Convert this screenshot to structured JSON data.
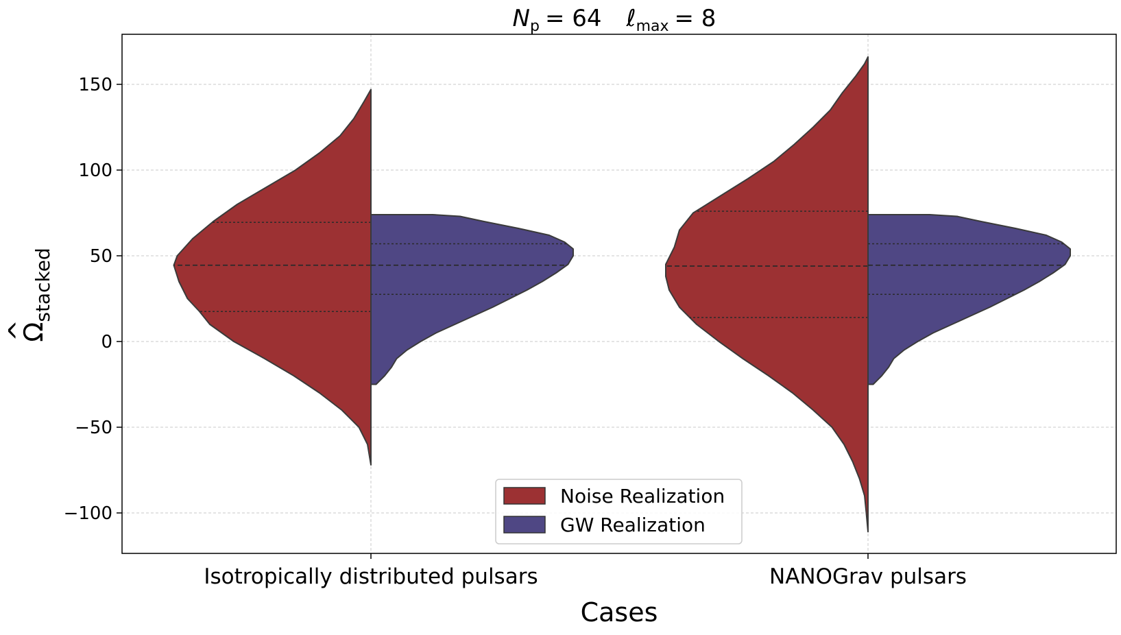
{
  "chart_data": {
    "type": "split-violin",
    "title": {
      "n_symbol": "N",
      "n_sub": "p",
      "n_value": "= 64",
      "l_symbol": "ℓ",
      "l_sub": "max",
      "l_value": "= 8"
    },
    "xlabel": "Cases",
    "ylabel": {
      "base": "Ω",
      "hat": "^",
      "sub": "stacked"
    },
    "ylim": [
      -124,
      180
    ],
    "yticks": [
      150,
      100,
      50,
      0,
      -50,
      -100
    ],
    "ytick_labels": [
      "150",
      "100",
      "50",
      "0",
      "−50",
      "−100"
    ],
    "grid": true,
    "categories": [
      "Isotropically distributed pulsars",
      "NANOGrav pulsars"
    ],
    "legend": {
      "position": "bottom-center",
      "entries": [
        {
          "label": "Noise Realization",
          "color": "#9C3133"
        },
        {
          "label": "GW Realization",
          "color": "#4F4784"
        }
      ]
    },
    "series": [
      {
        "name": "Noise Realization",
        "side": "left",
        "color": "#9C3133",
        "violins": [
          {
            "category": "Isotropically distributed pulsars",
            "y_min": -72,
            "y_max": 147,
            "quartiles": [
              17.5,
              44.5,
              69.5
            ],
            "density": [
              [
                -72,
                0
              ],
              [
                -60,
                0.02
              ],
              [
                -50,
                0.07
              ],
              [
                -40,
                0.17
              ],
              [
                -30,
                0.3
              ],
              [
                -20,
                0.45
              ],
              [
                -10,
                0.62
              ],
              [
                0,
                0.8
              ],
              [
                10,
                0.94
              ],
              [
                17.5,
                1.0
              ],
              [
                25,
                1.07
              ],
              [
                35,
                1.12
              ],
              [
                44.5,
                1.15
              ],
              [
                50,
                1.13
              ],
              [
                60,
                1.04
              ],
              [
                70,
                0.92
              ],
              [
                80,
                0.78
              ],
              [
                90,
                0.61
              ],
              [
                100,
                0.44
              ],
              [
                110,
                0.3
              ],
              [
                120,
                0.18
              ],
              [
                130,
                0.1
              ],
              [
                140,
                0.04
              ],
              [
                147,
                0
              ]
            ]
          },
          {
            "category": "NANOGrav pulsars",
            "y_min": -111,
            "y_max": 166,
            "quartiles": [
              14,
              44,
              76
            ],
            "density": [
              [
                -111,
                0
              ],
              [
                -100,
                0.01
              ],
              [
                -90,
                0.02
              ],
              [
                -80,
                0.05
              ],
              [
                -70,
                0.09
              ],
              [
                -60,
                0.14
              ],
              [
                -50,
                0.21
              ],
              [
                -40,
                0.32
              ],
              [
                -30,
                0.44
              ],
              [
                -20,
                0.58
              ],
              [
                -10,
                0.73
              ],
              [
                0,
                0.87
              ],
              [
                10,
                1.0
              ],
              [
                20,
                1.1
              ],
              [
                30,
                1.16
              ],
              [
                38,
                1.18
              ],
              [
                45,
                1.18
              ],
              [
                55,
                1.13
              ],
              [
                65,
                1.1
              ],
              [
                75,
                1.02
              ],
              [
                85,
                0.86
              ],
              [
                95,
                0.7
              ],
              [
                105,
                0.55
              ],
              [
                115,
                0.43
              ],
              [
                125,
                0.32
              ],
              [
                135,
                0.22
              ],
              [
                145,
                0.15
              ],
              [
                155,
                0.07
              ],
              [
                162,
                0.02
              ],
              [
                166,
                0
              ]
            ]
          }
        ]
      },
      {
        "name": "GW Realization",
        "side": "right",
        "color": "#4F4784",
        "violins": [
          {
            "category": "Isotropically distributed pulsars",
            "y_min": -25,
            "y_max": 74,
            "quartiles": [
              27.5,
              44.5,
              57
            ],
            "density": [
              [
                -25,
                0.03
              ],
              [
                -20,
                0.08
              ],
              [
                -15,
                0.12
              ],
              [
                -10,
                0.15
              ],
              [
                -5,
                0.21
              ],
              [
                0,
                0.29
              ],
              [
                5,
                0.38
              ],
              [
                10,
                0.49
              ],
              [
                15,
                0.6
              ],
              [
                20,
                0.71
              ],
              [
                25,
                0.81
              ],
              [
                30,
                0.91
              ],
              [
                35,
                1.0
              ],
              [
                40,
                1.08
              ],
              [
                45,
                1.15
              ],
              [
                50,
                1.18
              ],
              [
                54,
                1.18
              ],
              [
                58,
                1.13
              ],
              [
                62,
                1.04
              ],
              [
                66,
                0.86
              ],
              [
                70,
                0.66
              ],
              [
                73,
                0.52
              ],
              [
                74,
                0.36
              ]
            ]
          },
          {
            "category": "NANOGrav pulsars",
            "y_min": -25,
            "y_max": 74,
            "quartiles": [
              27.5,
              44.5,
              57
            ],
            "density": [
              [
                -25,
                0.03
              ],
              [
                -20,
                0.08
              ],
              [
                -15,
                0.12
              ],
              [
                -10,
                0.15
              ],
              [
                -5,
                0.21
              ],
              [
                0,
                0.29
              ],
              [
                5,
                0.38
              ],
              [
                10,
                0.49
              ],
              [
                15,
                0.6
              ],
              [
                20,
                0.71
              ],
              [
                25,
                0.81
              ],
              [
                30,
                0.91
              ],
              [
                35,
                1.0
              ],
              [
                40,
                1.08
              ],
              [
                45,
                1.15
              ],
              [
                50,
                1.18
              ],
              [
                54,
                1.18
              ],
              [
                58,
                1.13
              ],
              [
                62,
                1.04
              ],
              [
                66,
                0.86
              ],
              [
                70,
                0.66
              ],
              [
                73,
                0.52
              ],
              [
                74,
                0.36
              ]
            ]
          }
        ]
      }
    ]
  }
}
